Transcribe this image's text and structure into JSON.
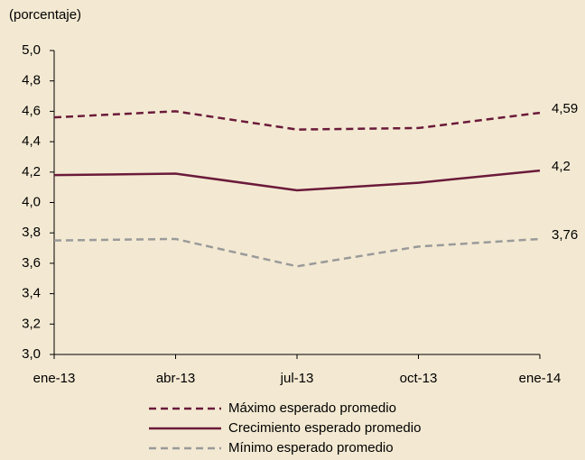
{
  "chart_data": {
    "type": "line",
    "y_axis_label": "(porcentaje)",
    "categories": [
      "ene-13",
      "abr-13",
      "jul-13",
      "oct-13",
      "ene-14"
    ],
    "series": [
      {
        "name": "Máximo esperado promedio",
        "color": "#6b1a3a",
        "line_style": "dashed",
        "values": [
          4.56,
          4.6,
          4.48,
          4.49,
          4.59
        ],
        "value_labels": [
          null,
          null,
          null,
          null,
          "4,59"
        ]
      },
      {
        "name": "Crecimiento esperado promedio",
        "color": "#6b1a3a",
        "line_style": "solid",
        "values": [
          4.18,
          4.19,
          4.08,
          4.13,
          4.21
        ],
        "value_labels": [
          null,
          null,
          null,
          null,
          "4,2"
        ]
      },
      {
        "name": "Mínimo esperado promedio",
        "color": "#9a9a9a",
        "line_style": "dashed",
        "values": [
          3.75,
          3.76,
          3.58,
          3.71,
          3.76
        ],
        "value_labels": [
          null,
          null,
          null,
          null,
          "3,76"
        ]
      }
    ],
    "ylim": [
      3.0,
      5.0
    ],
    "yticks": [
      {
        "value": 3.0,
        "label": "3,0"
      },
      {
        "value": 3.2,
        "label": "3,2"
      },
      {
        "value": 3.4,
        "label": "3,4"
      },
      {
        "value": 3.6,
        "label": "3,6"
      },
      {
        "value": 3.8,
        "label": "3,8"
      },
      {
        "value": 4.0,
        "label": "4,0"
      },
      {
        "value": 4.2,
        "label": "4,2"
      },
      {
        "value": 4.4,
        "label": "4,4"
      },
      {
        "value": 4.6,
        "label": "4,6"
      },
      {
        "value": 4.8,
        "label": "4,8"
      },
      {
        "value": 5.0,
        "label": "5,0"
      }
    ],
    "grid": false,
    "legend": "bottom"
  }
}
